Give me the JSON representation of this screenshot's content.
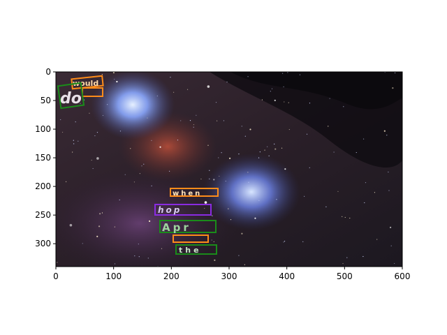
{
  "figure": {
    "background": "#ffffff",
    "image_subject": "nebula-starfield",
    "box_colors": {
      "orange": "#ff8c1a",
      "green": "#1a8c1a",
      "purple": "#8a2be2"
    }
  },
  "axes": {
    "xlim": [
      0,
      600
    ],
    "ylim": [
      340,
      0
    ],
    "x_ticks": [
      "0",
      "100",
      "200",
      "300",
      "400",
      "500",
      "600"
    ],
    "y_ticks": [
      "0",
      "50",
      "100",
      "150",
      "200",
      "250",
      "300"
    ]
  },
  "annotations": [
    {
      "text": "would",
      "color": "orange"
    },
    {
      "text": "do",
      "color": "green"
    },
    {
      "text": "when",
      "color": "orange"
    },
    {
      "text": "hop",
      "color": "purple"
    },
    {
      "text": "Apr",
      "color": "green"
    },
    {
      "text": "the",
      "color": "green"
    }
  ]
}
